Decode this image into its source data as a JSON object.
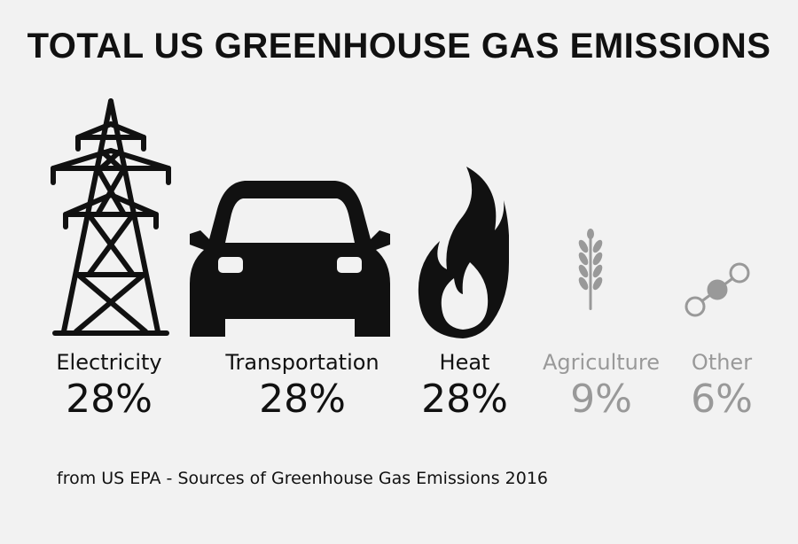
{
  "title": "TOTAL US GREENHOUSE GAS EMISSIONS",
  "source": "from US EPA - Sources of Greenhouse Gas Emissions 2016",
  "colors": {
    "background": "#f2f2f2",
    "primary": "#111111",
    "muted": "#999999"
  },
  "chart_data": {
    "type": "table",
    "title": "TOTAL US GREENHOUSE GAS EMISSIONS",
    "categories": [
      "Electricity",
      "Transportation",
      "Heat",
      "Agriculture",
      "Other"
    ],
    "values": [
      28,
      28,
      28,
      9,
      6
    ],
    "value_labels": [
      "28%",
      "28%",
      "28%",
      "9%",
      "6%"
    ],
    "icons": [
      "transmission-tower-icon",
      "car-icon",
      "flame-icon",
      "wheat-icon",
      "molecule-icon"
    ],
    "muted": [
      false,
      false,
      false,
      true,
      true
    ]
  }
}
